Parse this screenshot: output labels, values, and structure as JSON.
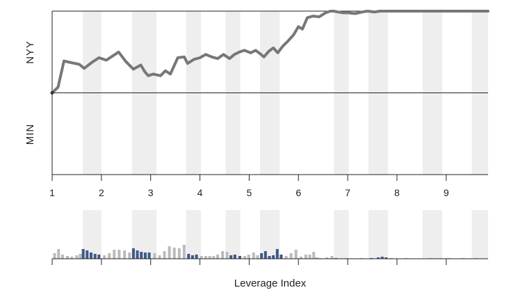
{
  "chart_data": {
    "type": "line",
    "xlabel": "Leverage Index",
    "y_categories": [
      "NYY",
      "MIN"
    ],
    "x_ticks": [
      1,
      2,
      3,
      4,
      5,
      6,
      7,
      8,
      9
    ],
    "xlim": [
      1,
      9.85
    ],
    "ylim": [
      -1,
      1
    ],
    "grid": false,
    "colors": {
      "line": "#777777",
      "band": "#eeeeee",
      "bar_normal": "#bbbbbb",
      "bar_highlight": "#3e5a86",
      "axis": "#222222"
    },
    "shaded_bands": [
      [
        1.62,
        2.0
      ],
      [
        2.62,
        3.12
      ],
      [
        3.72,
        4.02
      ],
      [
        4.52,
        4.82
      ],
      [
        5.22,
        5.62
      ],
      [
        6.72,
        7.02
      ],
      [
        7.42,
        7.82
      ],
      [
        8.52,
        8.92
      ],
      [
        9.52,
        9.85
      ]
    ],
    "series": [
      {
        "x": [
          1.0,
          1.12,
          1.24,
          1.38,
          1.55,
          1.65,
          1.8,
          1.95,
          2.1,
          2.2,
          2.35,
          2.5,
          2.65,
          2.8,
          2.88,
          2.95,
          3.05,
          3.2,
          3.3,
          3.4,
          3.55,
          3.68,
          3.75,
          3.88,
          4.0,
          4.12,
          4.24,
          4.36,
          4.48,
          4.6,
          4.7,
          4.8,
          4.9,
          5.03,
          5.13,
          5.22,
          5.3,
          5.4,
          5.49,
          5.58,
          5.68,
          5.78,
          5.9,
          6.0,
          6.08,
          6.18,
          6.3,
          6.42,
          6.55,
          6.65,
          6.72,
          6.8,
          6.9,
          7.0,
          7.15,
          7.3,
          7.4,
          7.55,
          7.65,
          7.78,
          7.9,
          8.05,
          8.2,
          8.4,
          8.6,
          8.8,
          9.0,
          9.2,
          9.5,
          9.85
        ],
        "y": [
          0.0,
          0.07,
          0.39,
          0.37,
          0.35,
          0.3,
          0.37,
          0.43,
          0.4,
          0.44,
          0.5,
          0.38,
          0.29,
          0.34,
          0.26,
          0.21,
          0.23,
          0.21,
          0.27,
          0.23,
          0.43,
          0.44,
          0.36,
          0.41,
          0.43,
          0.47,
          0.44,
          0.42,
          0.47,
          0.42,
          0.47,
          0.5,
          0.52,
          0.49,
          0.52,
          0.48,
          0.44,
          0.51,
          0.55,
          0.49,
          0.57,
          0.63,
          0.71,
          0.81,
          0.78,
          0.92,
          0.94,
          0.93,
          0.98,
          1.0,
          1.0,
          0.99,
          0.98,
          0.98,
          0.97,
          0.99,
          1.0,
          0.99,
          1.0,
          1.0,
          1.0,
          1.0,
          1.0,
          1.0,
          1.0,
          1.0,
          1.0,
          1.0,
          1.0,
          1.0
        ]
      }
    ],
    "leverage_bars": {
      "x": [
        1.05,
        1.13,
        1.21,
        1.31,
        1.4,
        1.5,
        1.57,
        1.63,
        1.71,
        1.79,
        1.87,
        1.95,
        2.06,
        2.16,
        2.26,
        2.36,
        2.47,
        2.57,
        2.65,
        2.73,
        2.81,
        2.89,
        2.97,
        3.08,
        3.18,
        3.28,
        3.38,
        3.48,
        3.58,
        3.68,
        3.77,
        3.85,
        3.93,
        4.03,
        4.12,
        4.2,
        4.28,
        4.36,
        4.46,
        4.55,
        4.63,
        4.71,
        4.81,
        4.91,
        4.99,
        5.09,
        5.17,
        5.25,
        5.33,
        5.41,
        5.49,
        5.57,
        5.65,
        5.75,
        5.85,
        5.95,
        6.05,
        6.15,
        6.23,
        6.31,
        6.37,
        6.43,
        6.58,
        6.68,
        6.76,
        6.98,
        7.28,
        7.48,
        7.62,
        7.7,
        7.78,
        7.88,
        8.18,
        8.68,
        8.88,
        9.05,
        9.35,
        9.62
      ],
      "values": [
        0.08,
        0.14,
        0.06,
        0.04,
        0.03,
        0.05,
        0.07,
        0.14,
        0.12,
        0.09,
        0.07,
        0.06,
        0.05,
        0.08,
        0.13,
        0.13,
        0.12,
        0.09,
        0.15,
        0.12,
        0.1,
        0.09,
        0.09,
        0.08,
        0.05,
        0.11,
        0.18,
        0.16,
        0.15,
        0.2,
        0.07,
        0.05,
        0.06,
        0.04,
        0.04,
        0.04,
        0.04,
        0.06,
        0.11,
        0.1,
        0.05,
        0.06,
        0.04,
        0.04,
        0.06,
        0.09,
        0.05,
        0.08,
        0.11,
        0.04,
        0.05,
        0.14,
        0.06,
        0.04,
        0.08,
        0.13,
        0.03,
        0.06,
        0.06,
        0.1,
        0.02,
        0.01,
        0.02,
        0.04,
        0.01,
        0.01,
        0.01,
        0.01,
        0.02,
        0.03,
        0.02,
        0.01,
        0.01,
        0.01,
        0.01,
        0.01,
        0.01,
        0.01
      ],
      "highlight": [
        false,
        false,
        false,
        false,
        false,
        false,
        false,
        true,
        true,
        true,
        true,
        true,
        false,
        false,
        false,
        false,
        false,
        false,
        true,
        true,
        true,
        true,
        true,
        false,
        false,
        false,
        false,
        false,
        false,
        false,
        true,
        true,
        true,
        false,
        false,
        false,
        false,
        false,
        false,
        false,
        true,
        true,
        true,
        false,
        false,
        false,
        false,
        true,
        true,
        true,
        true,
        true,
        true,
        false,
        false,
        false,
        false,
        false,
        false,
        false,
        false,
        false,
        false,
        false,
        true,
        false,
        false,
        true,
        true,
        true,
        true,
        false,
        false,
        false,
        false,
        false,
        false,
        false
      ]
    }
  }
}
